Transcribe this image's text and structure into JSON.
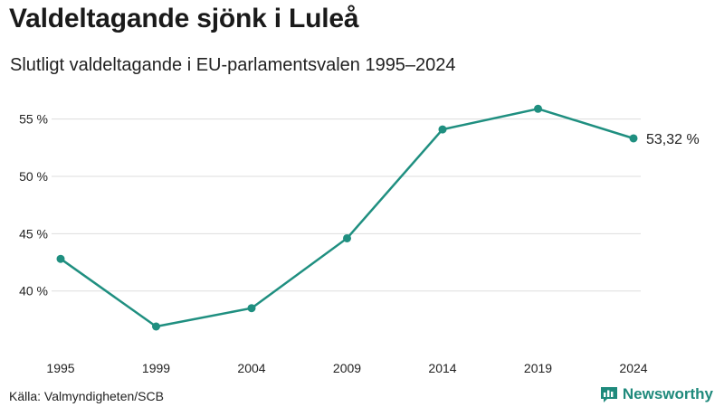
{
  "title": "Valdeltagande sjönk i Luleå",
  "subtitle": "Slutligt valdeltagande i EU-parlamentsvalen 1995–2024",
  "source": "Källa: Valmyndigheten/SCB",
  "brand": "Newsworthy",
  "brand_icon": "newsworthy-logo-icon",
  "colors": {
    "line": "#1f8f80",
    "grid": "#dddddd",
    "text": "#222222",
    "brand": "#1f8a7c"
  },
  "chart_data": {
    "type": "line",
    "title": "Valdeltagande sjönk i Luleå",
    "subtitle": "Slutligt valdeltagande i EU-parlamentsvalen 1995–2024",
    "xlabel": "",
    "ylabel": "",
    "x": [
      "1995",
      "1999",
      "2004",
      "2009",
      "2014",
      "2019",
      "2024"
    ],
    "series": [
      {
        "name": "Valdeltagande",
        "values": [
          42.8,
          36.9,
          38.5,
          44.6,
          54.1,
          55.9,
          53.32
        ]
      }
    ],
    "ylim": [
      35.4,
      57.5
    ],
    "yticks": [
      40,
      45,
      50,
      55
    ],
    "ytick_labels": [
      "40 %",
      "45 %",
      "50 %",
      "55 %"
    ],
    "grid": true,
    "end_label": "53,32 %"
  }
}
